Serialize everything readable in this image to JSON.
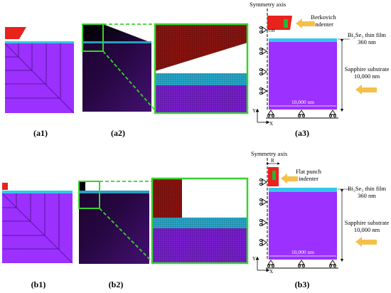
{
  "colors": {
    "substrate": "#9b30ff",
    "film": "#33c8e8",
    "indenter": "#e8221c",
    "zoom_frame": "#39d22e",
    "arrow": "#f5c04a",
    "mesh_dark": "#000000"
  },
  "panel_labels": {
    "a1": "(a1)",
    "a2": "(a2)",
    "a3": "(a3)",
    "b1": "(b1)",
    "b2": "(b2)",
    "b3": "(b3)"
  },
  "schematic_a": {
    "symmetry_axis": "Symmetry axis",
    "indenter_line1": "Berkovich",
    "indenter_line2": "indenter",
    "film_line1": "Bi₂Se₃ thin film",
    "film_line2": "360 nm",
    "substrate_line1": "Sapphire substrate",
    "substrate_line2": "10,000 nm",
    "width_label": "10,000 nm",
    "indenter_tag": "OH",
    "axis_y": "Y",
    "axis_x": "X"
  },
  "schematic_b": {
    "symmetry_axis": "Symmetry axis",
    "radius_label": "R",
    "indenter_line1": "Flat punch",
    "indenter_line2": "indenter",
    "film_line1": "Bi₂Se₃ thin film",
    "film_line2": "360 nm",
    "substrate_line1": "Sapphire substrate",
    "substrate_line2": "10,000 nm",
    "width_label": "10,000 nm",
    "axis_y": "Y",
    "axis_x": "X"
  }
}
